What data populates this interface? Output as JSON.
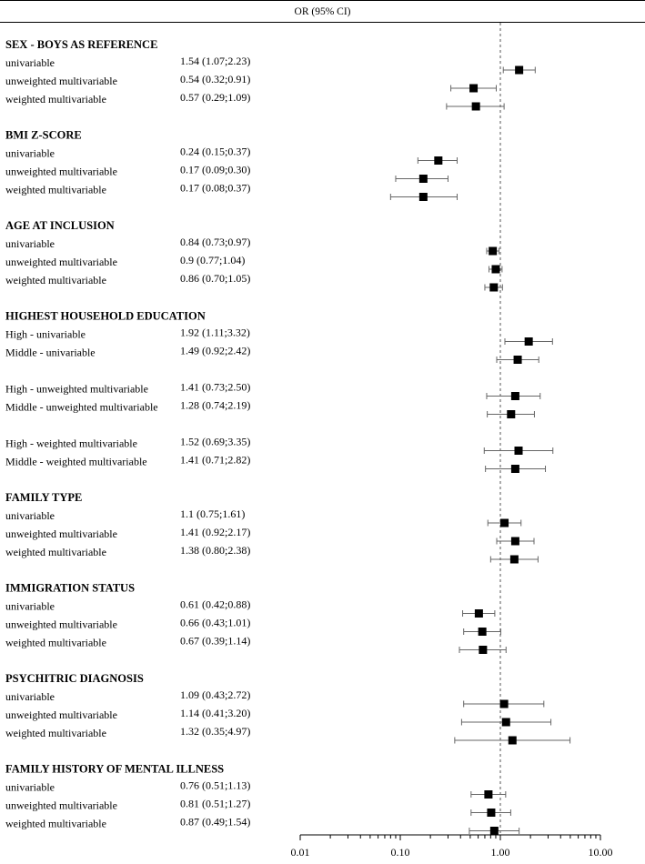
{
  "header": {
    "title": "OR (95% CI)"
  },
  "chart_data": {
    "type": "forest",
    "scale": "log",
    "xlim": [
      0.01,
      10
    ],
    "reference_line": 1.0,
    "x_ticks": [
      0.01,
      0.1,
      1,
      10
    ],
    "x_tick_labels": [
      "0.01",
      "0.10",
      "1.00",
      "10.00"
    ],
    "groups": [
      {
        "title": "SEX - BOYS AS REFERENCE",
        "rows": [
          {
            "label": "univariable",
            "ci_text": "1.54 (1.07;2.23)",
            "or": 1.54,
            "lo": 1.07,
            "hi": 2.23
          },
          {
            "label": "unweighted multivariable",
            "ci_text": "0.54 (0.32;0.91)",
            "or": 0.54,
            "lo": 0.32,
            "hi": 0.91
          },
          {
            "label": "weighted multivariable",
            "ci_text": "0.57 (0.29;1.09)",
            "or": 0.57,
            "lo": 0.29,
            "hi": 1.09
          }
        ]
      },
      {
        "title": "BMI Z-SCORE",
        "rows": [
          {
            "label": "univariable",
            "ci_text": "0.24 (0.15;0.37)",
            "or": 0.24,
            "lo": 0.15,
            "hi": 0.37
          },
          {
            "label": "unweighted multivariable",
            "ci_text": "0.17 (0.09;0.30)",
            "or": 0.17,
            "lo": 0.09,
            "hi": 0.3
          },
          {
            "label": "weighted multivariable",
            "ci_text": "0.17 (0.08;0.37)",
            "or": 0.17,
            "lo": 0.08,
            "hi": 0.37
          }
        ]
      },
      {
        "title": "AGE AT INCLUSION",
        "rows": [
          {
            "label": "univariable",
            "ci_text": "0.84 (0.73;0.97)",
            "or": 0.84,
            "lo": 0.73,
            "hi": 0.97
          },
          {
            "label": "unweighted multivariable",
            "ci_text": "0.9 (0.77;1.04)",
            "or": 0.9,
            "lo": 0.77,
            "hi": 1.04
          },
          {
            "label": "weighted multivariable",
            "ci_text": "0.86 (0.70;1.05)",
            "or": 0.86,
            "lo": 0.7,
            "hi": 1.05
          }
        ]
      },
      {
        "title": "HIGHEST HOUSEHOLD EDUCATION",
        "rows": [
          {
            "label": "High - univariable",
            "ci_text": "1.92 (1.11;3.32)",
            "or": 1.92,
            "lo": 1.11,
            "hi": 3.32
          },
          {
            "label": "Middle - univariable",
            "ci_text": "1.49 (0.92;2.42)",
            "or": 1.49,
            "lo": 0.92,
            "hi": 2.42
          },
          {
            "label": "High - unweighted multivariable",
            "ci_text": "1.41 (0.73;2.50)",
            "or": 1.41,
            "lo": 0.73,
            "hi": 2.5
          },
          {
            "label": "Middle - unweighted multivariable",
            "ci_text": "1.28 (0.74;2.19)",
            "or": 1.28,
            "lo": 0.74,
            "hi": 2.19
          },
          {
            "label": "High - weighted multivariable",
            "ci_text": "1.52 (0.69;3.35)",
            "or": 1.52,
            "lo": 0.69,
            "hi": 3.35
          },
          {
            "label": "Middle - weighted multivariable",
            "ci_text": "1.41 (0.71;2.82)",
            "or": 1.41,
            "lo": 0.71,
            "hi": 2.82
          }
        ]
      },
      {
        "title": "FAMILY TYPE",
        "rows": [
          {
            "label": "univariable",
            "ci_text": "1.1 (0.75;1.61)",
            "or": 1.1,
            "lo": 0.75,
            "hi": 1.61
          },
          {
            "label": "unweighted multivariable",
            "ci_text": "1.41 (0.92;2.17)",
            "or": 1.41,
            "lo": 0.92,
            "hi": 2.17
          },
          {
            "label": "weighted multivariable",
            "ci_text": "1.38 (0.80;2.38)",
            "or": 1.38,
            "lo": 0.8,
            "hi": 2.38
          }
        ]
      },
      {
        "title": "IMMIGRATION STATUS",
        "rows": [
          {
            "label": "univariable",
            "ci_text": "0.61 (0.42;0.88)",
            "or": 0.61,
            "lo": 0.42,
            "hi": 0.88
          },
          {
            "label": "unweighted multivariable",
            "ci_text": "0.66 (0.43;1.01)",
            "or": 0.66,
            "lo": 0.43,
            "hi": 1.01
          },
          {
            "label": "weighted multivariable",
            "ci_text": "0.67 (0.39;1.14)",
            "or": 0.67,
            "lo": 0.39,
            "hi": 1.14
          }
        ]
      },
      {
        "title": "PSYCHITRIC DIAGNOSIS",
        "rows": [
          {
            "label": "univariable",
            "ci_text": "1.09 (0.43;2.72)",
            "or": 1.09,
            "lo": 0.43,
            "hi": 2.72
          },
          {
            "label": "unweighted multivariable",
            "ci_text": "1.14 (0.41;3.20)",
            "or": 1.14,
            "lo": 0.41,
            "hi": 3.2
          },
          {
            "label": "weighted multivariable",
            "ci_text": "1.32 (0.35;4.97)",
            "or": 1.32,
            "lo": 0.35,
            "hi": 4.97
          }
        ]
      },
      {
        "title": "FAMILY HISTORY OF MENTAL ILLNESS",
        "rows": [
          {
            "label": "univariable",
            "ci_text": "0.76 (0.51;1.13)",
            "or": 0.76,
            "lo": 0.51,
            "hi": 1.13
          },
          {
            "label": "unweighted multivariable",
            "ci_text": "0.81 (0.51;1.27)",
            "or": 0.81,
            "lo": 0.51,
            "hi": 1.27
          },
          {
            "label": "weighted multivariable",
            "ci_text": "0.87 (0.49;1.54)",
            "or": 0.87,
            "lo": 0.49,
            "hi": 1.54
          }
        ]
      }
    ]
  }
}
